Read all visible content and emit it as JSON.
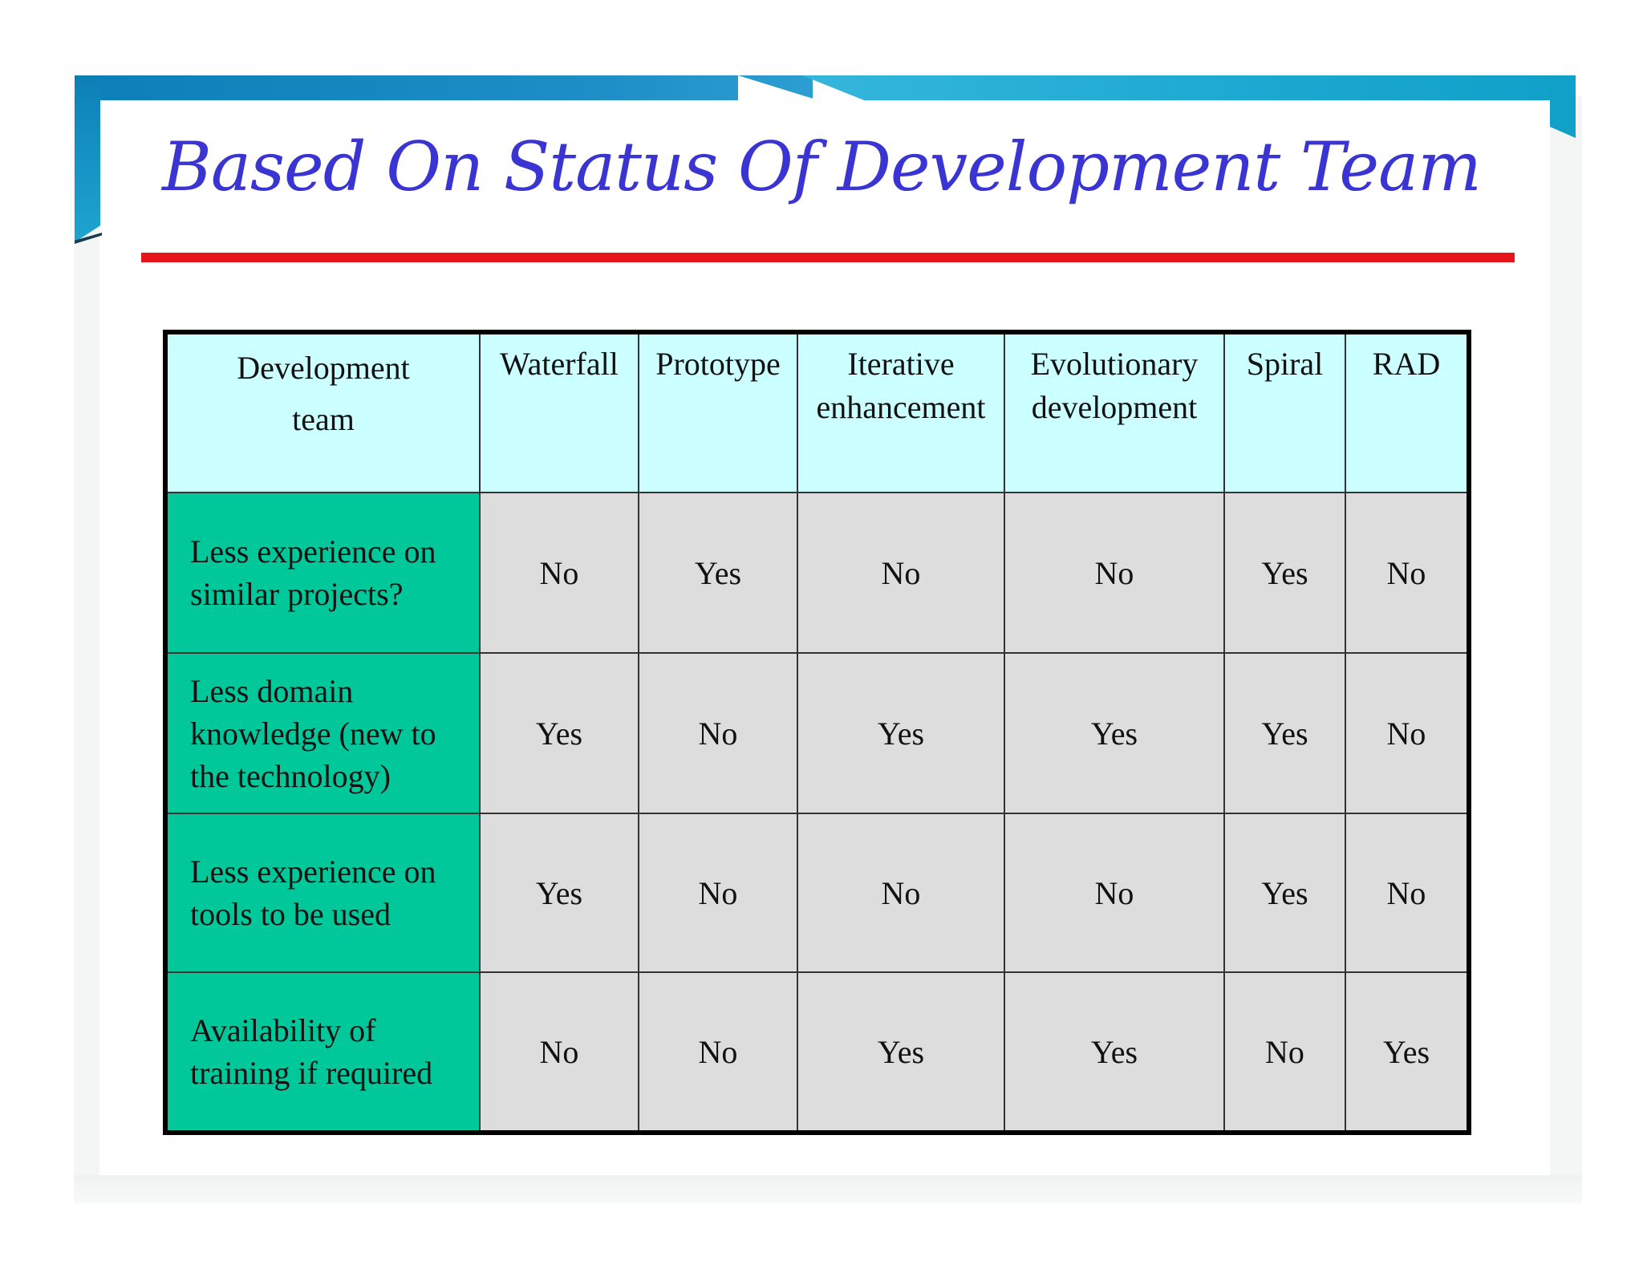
{
  "slide": {
    "title": "Based On Status Of Development Team",
    "colors": {
      "title": "#3a34d2",
      "rule": "#e8141c",
      "header_bg": "#ccffff",
      "row_label_bg": "#00c89a",
      "cell_bg": "#dddddd",
      "band": "#1ba8d1"
    }
  },
  "table": {
    "columns": [
      "Development team",
      "Waterfall",
      "Prototype",
      "Iterative enhancement",
      "Evolutionary development",
      "Spiral",
      "RAD"
    ],
    "rows": [
      {
        "label": "Less experience on similar projects?",
        "values": [
          "No",
          "Yes",
          "No",
          "No",
          "Yes",
          "No"
        ]
      },
      {
        "label": "Less domain knowledge (new to the technology)",
        "values": [
          "Yes",
          "No",
          "Yes",
          "Yes",
          "Yes",
          "No"
        ]
      },
      {
        "label": "Less experience on tools to be used",
        "values": [
          "Yes",
          "No",
          "No",
          "No",
          "Yes",
          "No"
        ]
      },
      {
        "label": "Availability of training if required",
        "values": [
          "No",
          "No",
          "Yes",
          "Yes",
          "No",
          "Yes"
        ]
      }
    ]
  }
}
